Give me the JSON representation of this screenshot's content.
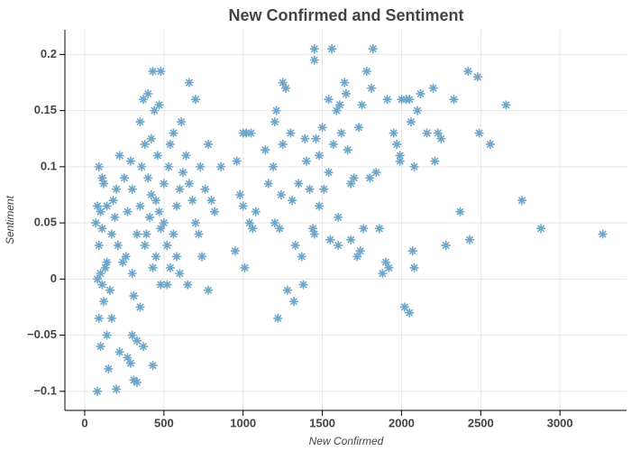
{
  "chart_data": {
    "type": "scatter",
    "title": "New Confirmed and Sentiment",
    "x_label": "New Confirmed",
    "y_label": "Sentiment",
    "color": "#6ea6c9",
    "grid": true,
    "xlim": [
      -125,
      3420
    ],
    "ylim": [
      -0.117,
      0.222
    ],
    "xticks": [
      0,
      500,
      1000,
      1500,
      2000,
      2500,
      3000
    ],
    "yticks": [
      {
        "value": -0.1,
        "label": "−0.1"
      },
      {
        "value": -0.05,
        "label": "−0.05"
      },
      0,
      0.05,
      0.1,
      0.15,
      0.2
    ],
    "x": [
      1000,
      960,
      1050,
      980,
      1000,
      1040,
      1080,
      1060,
      1010,
      950,
      1140,
      1200,
      1250,
      1270,
      1300,
      1210,
      1220,
      1280,
      1320,
      1380,
      1330,
      1370,
      1390,
      1350,
      1400,
      1420,
      1450,
      1450,
      1460,
      1480,
      1500,
      1510,
      1540,
      1560,
      1570,
      1590,
      1610,
      1620,
      1640,
      1650,
      1660,
      1700,
      1720,
      1730,
      1750,
      1780,
      1820,
      1810,
      1800,
      1840,
      1880,
      1900,
      1910,
      1950,
      1970,
      1990,
      2000,
      2030,
      2050,
      2060,
      2080,
      2100,
      2120,
      2160,
      2200,
      2230,
      2250,
      2280,
      2330,
      2370,
      2420,
      2430,
      2480,
      2490,
      2560,
      2660,
      2760,
      2880,
      3270,
      1440,
      1450,
      1550,
      1600,
      1680,
      1760,
      1740,
      1860,
      2050,
      2020,
      2070,
      2080,
      1920,
      1600,
      1480,
      1310,
      1240,
      1190,
      1160,
      1200,
      1230,
      1250,
      1540,
      1680,
      2210,
      1990,
      1020,
      80,
      200,
      310,
      330,
      430,
      150,
      220,
      270,
      290,
      300,
      330,
      370,
      100,
      140,
      170,
      90,
      120,
      160,
      80,
      100,
      130,
      110,
      140,
      90,
      110,
      70,
      80,
      100,
      140,
      120,
      90,
      110,
      200,
      180,
      170,
      220,
      250,
      290,
      270,
      260,
      300,
      310,
      350,
      380,
      330,
      350,
      370,
      400,
      430,
      480,
      470,
      440,
      420,
      380,
      360,
      400,
      420,
      450,
      470,
      480,
      500,
      520,
      450,
      430,
      480,
      520,
      540,
      560,
      580,
      600,
      620,
      640,
      660,
      700,
      610,
      560,
      530,
      500,
      660,
      680,
      700,
      720,
      740,
      780,
      650,
      600,
      730,
      780,
      820,
      800,
      860,
      760,
      350,
      300,
      390,
      410,
      460,
      540,
      580,
      210,
      240,
      190
    ],
    "values": [
      0.13,
      0.105,
      0.13,
      0.075,
      0.065,
      0.05,
      0.06,
      0.045,
      0.01,
      0.025,
      0.115,
      0.14,
      0.175,
      0.17,
      0.13,
      0.15,
      -0.035,
      -0.01,
      -0.02,
      -0.005,
      0.03,
      0.02,
      0.125,
      0.085,
      0.105,
      0.08,
      0.205,
      0.195,
      0.125,
      0.11,
      0.135,
      0.08,
      0.16,
      0.205,
      0.12,
      0.15,
      0.155,
      0.13,
      0.175,
      0.165,
      0.115,
      0.09,
      0.02,
      0.135,
      0.155,
      0.185,
      0.205,
      0.17,
      0.09,
      0.095,
      0.005,
      0.015,
      0.16,
      0.13,
      0.12,
      0.105,
      0.16,
      0.16,
      0.16,
      0.14,
      0.1,
      0.15,
      0.165,
      0.13,
      0.17,
      0.13,
      0.125,
      0.03,
      0.16,
      0.06,
      0.185,
      0.035,
      0.18,
      0.13,
      0.12,
      0.155,
      0.07,
      0.045,
      0.04,
      0.045,
      0.04,
      0.035,
      0.03,
      0.035,
      0.045,
      0.025,
      0.045,
      -0.03,
      -0.025,
      0.025,
      0.01,
      0.01,
      0.055,
      0.065,
      0.07,
      0.075,
      0.1,
      0.085,
      0.05,
      0.045,
      0.12,
      0.095,
      0.085,
      0.105,
      0.11,
      0.13,
      -0.1,
      -0.098,
      -0.09,
      -0.092,
      -0.077,
      -0.08,
      -0.065,
      -0.07,
      -0.075,
      -0.05,
      -0.055,
      -0.06,
      -0.06,
      -0.05,
      -0.035,
      -0.035,
      -0.02,
      -0.01,
      0,
      0.005,
      0.01,
      -0.005,
      0.015,
      0.03,
      0.045,
      0.05,
      0.065,
      0.06,
      0.065,
      0.085,
      0.1,
      0.09,
      0.08,
      0.07,
      0.04,
      0.11,
      0.09,
      0.105,
      0.06,
      0.02,
      0.005,
      -0.015,
      -0.025,
      0.03,
      0.04,
      0.14,
      0.16,
      0.165,
      0.185,
      0.185,
      0.155,
      0.15,
      0.125,
      0.12,
      0.1,
      0.09,
      0.075,
      0.07,
      0.06,
      0.045,
      0.05,
      0.03,
      0.02,
      0.01,
      -0.005,
      -0.005,
      0.01,
      0.04,
      0.065,
      0.08,
      0.095,
      0.11,
      0.175,
      0.16,
      0.14,
      0.13,
      0.1,
      0.085,
      0.085,
      0.07,
      0.05,
      0.04,
      0.02,
      -0.01,
      -0.005,
      0.005,
      0.1,
      0.12,
      0.06,
      0.07,
      0.1,
      0.08,
      0.065,
      0.08,
      0.04,
      0.055,
      0.11,
      0.12,
      0.02,
      0.03,
      0.015,
      0.055
    ]
  }
}
